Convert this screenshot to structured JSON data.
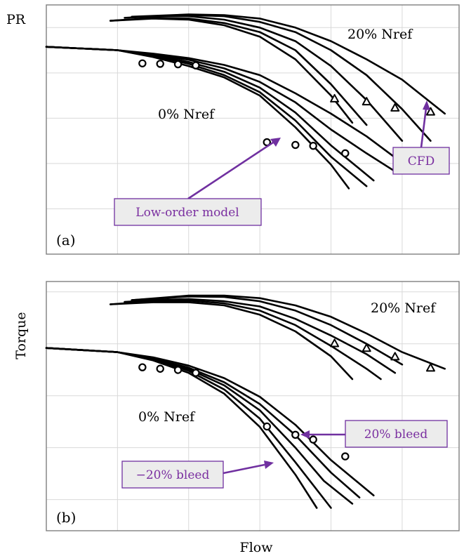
{
  "figure": {
    "xlabel": "Flow",
    "colors": {
      "curve": "#000000",
      "grid": "#d9d9d9",
      "annotation": "#7030a0",
      "box_fill": "#ececec"
    }
  },
  "chart_data": [
    {
      "type": "line",
      "panel_label": "(a)",
      "ylabel": "PR",
      "grid": true,
      "speed_labels": [
        "20% Nref",
        "0% Nref"
      ],
      "annotations": [
        "Low-order model",
        "CFD"
      ],
      "series": [
        {
          "family": "0% Nref",
          "points": [
            [
              0.0,
              0.915
            ],
            [
              1.0,
              0.9
            ],
            [
              1.5,
              0.87
            ],
            [
              2.0,
              0.83
            ],
            [
              2.5,
              0.78
            ],
            [
              3.0,
              0.7
            ],
            [
              3.5,
              0.56
            ],
            [
              4.0,
              0.395
            ],
            [
              4.25,
              0.29
            ]
          ]
        },
        {
          "family": "0% Nref",
          "points": [
            [
              0.0,
              0.915
            ],
            [
              1.0,
              0.9
            ],
            [
              1.5,
              0.875
            ],
            [
              2.0,
              0.84
            ],
            [
              2.5,
              0.79
            ],
            [
              3.0,
              0.715
            ],
            [
              3.5,
              0.59
            ],
            [
              4.0,
              0.43
            ],
            [
              4.5,
              0.3
            ]
          ]
        },
        {
          "family": "0% Nref",
          "points": [
            [
              0.0,
              0.915
            ],
            [
              1.0,
              0.9
            ],
            [
              1.5,
              0.878
            ],
            [
              2.0,
              0.848
            ],
            [
              2.5,
              0.805
            ],
            [
              3.0,
              0.735
            ],
            [
              3.5,
              0.625
            ],
            [
              4.0,
              0.48
            ],
            [
              4.6,
              0.325
            ]
          ]
        },
        {
          "family": "0% Nref",
          "points": [
            [
              0.0,
              0.915
            ],
            [
              1.0,
              0.9
            ],
            [
              1.5,
              0.88
            ],
            [
              2.0,
              0.858
            ],
            [
              2.5,
              0.82
            ],
            [
              3.0,
              0.76
            ],
            [
              3.5,
              0.67
            ],
            [
              4.0,
              0.55
            ],
            [
              4.5,
              0.445
            ],
            [
              4.9,
              0.365
            ]
          ]
        },
        {
          "family": "0% Nref",
          "points": [
            [
              0.0,
              0.915
            ],
            [
              1.0,
              0.9
            ],
            [
              1.5,
              0.885
            ],
            [
              2.0,
              0.865
            ],
            [
              2.5,
              0.835
            ],
            [
              3.0,
              0.79
            ],
            [
              3.5,
              0.71
            ],
            [
              4.0,
              0.62
            ],
            [
              4.5,
              0.52
            ],
            [
              5.1,
              0.38
            ]
          ]
        },
        {
          "family": "20% Nref",
          "points": [
            [
              0.9,
              1.03
            ],
            [
              1.5,
              1.04
            ],
            [
              2.0,
              1.035
            ],
            [
              2.5,
              1.01
            ],
            [
              3.0,
              0.96
            ],
            [
              3.5,
              0.86
            ],
            [
              4.0,
              0.7
            ],
            [
              4.3,
              0.58
            ]
          ]
        },
        {
          "family": "20% Nref",
          "points": [
            [
              0.9,
              1.03
            ],
            [
              1.5,
              1.042
            ],
            [
              2.0,
              1.04
            ],
            [
              2.5,
              1.02
            ],
            [
              3.0,
              0.98
            ],
            [
              3.5,
              0.9
            ],
            [
              4.0,
              0.75
            ],
            [
              4.5,
              0.57
            ]
          ]
        },
        {
          "family": "20% Nref",
          "points": [
            [
              1.1,
              1.043
            ],
            [
              1.5,
              1.05
            ],
            [
              2.0,
              1.05
            ],
            [
              2.5,
              1.035
            ],
            [
              3.0,
              1.0
            ],
            [
              3.5,
              0.94
            ],
            [
              4.0,
              0.83
            ],
            [
              4.5,
              0.68
            ],
            [
              5.0,
              0.5
            ]
          ]
        },
        {
          "family": "20% Nref",
          "points": [
            [
              1.2,
              1.045
            ],
            [
              2.0,
              1.055
            ],
            [
              2.5,
              1.05
            ],
            [
              3.0,
              1.025
            ],
            [
              3.5,
              0.98
            ],
            [
              4.0,
              0.9
            ],
            [
              4.5,
              0.79
            ],
            [
              5.0,
              0.64
            ],
            [
              5.4,
              0.5
            ]
          ]
        },
        {
          "family": "20% Nref",
          "points": [
            [
              1.2,
              1.048
            ],
            [
              2.0,
              1.058
            ],
            [
              2.5,
              1.055
            ],
            [
              3.0,
              1.04
            ],
            [
              3.5,
              1.0
            ],
            [
              4.0,
              0.94
            ],
            [
              4.5,
              0.86
            ],
            [
              5.0,
              0.77
            ],
            [
              5.6,
              0.62
            ]
          ]
        }
      ],
      "markers": {
        "low_order_model": [
          [
            1.35,
            0.842
          ],
          [
            1.6,
            0.84
          ],
          [
            1.85,
            0.838
          ],
          [
            2.1,
            0.833
          ],
          [
            3.1,
            0.494
          ],
          [
            3.5,
            0.482
          ],
          [
            3.75,
            0.478
          ],
          [
            4.2,
            0.445
          ]
        ],
        "cfd": [
          [
            4.05,
            0.685
          ],
          [
            4.5,
            0.672
          ],
          [
            4.9,
            0.645
          ],
          [
            5.4,
            0.627
          ]
        ]
      }
    },
    {
      "type": "line",
      "panel_label": "(b)",
      "ylabel": "Torque",
      "grid": true,
      "speed_labels": [
        "20% Nref",
        "0% Nref"
      ],
      "annotations": [
        "20% bleed",
        "−20% bleed"
      ],
      "series": [
        {
          "family": "0% Nref",
          "points": [
            [
              0.0,
              0.98
            ],
            [
              1.0,
              0.96
            ],
            [
              1.5,
              0.92
            ],
            [
              2.0,
              0.86
            ],
            [
              2.5,
              0.76
            ],
            [
              3.0,
              0.6
            ],
            [
              3.5,
              0.37
            ],
            [
              3.8,
              0.21
            ]
          ]
        },
        {
          "family": "0% Nref",
          "points": [
            [
              0.0,
              0.98
            ],
            [
              1.0,
              0.96
            ],
            [
              1.5,
              0.925
            ],
            [
              2.0,
              0.87
            ],
            [
              2.5,
              0.78
            ],
            [
              3.0,
              0.64
            ],
            [
              3.5,
              0.43
            ],
            [
              4.0,
              0.21
            ]
          ]
        },
        {
          "family": "0% Nref",
          "points": [
            [
              0.0,
              0.98
            ],
            [
              1.0,
              0.96
            ],
            [
              1.5,
              0.928
            ],
            [
              2.0,
              0.878
            ],
            [
              2.5,
              0.8
            ],
            [
              3.0,
              0.68
            ],
            [
              3.5,
              0.5
            ],
            [
              3.9,
              0.34
            ],
            [
              4.3,
              0.23
            ]
          ]
        },
        {
          "family": "0% Nref",
          "points": [
            [
              0.0,
              0.98
            ],
            [
              1.0,
              0.96
            ],
            [
              1.5,
              0.93
            ],
            [
              2.0,
              0.885
            ],
            [
              2.5,
              0.815
            ],
            [
              3.0,
              0.71
            ],
            [
              3.5,
              0.56
            ],
            [
              4.0,
              0.38
            ],
            [
              4.4,
              0.26
            ]
          ]
        },
        {
          "family": "0% Nref",
          "points": [
            [
              0.0,
              0.98
            ],
            [
              1.0,
              0.96
            ],
            [
              1.5,
              0.935
            ],
            [
              2.0,
              0.895
            ],
            [
              2.5,
              0.835
            ],
            [
              3.0,
              0.745
            ],
            [
              3.5,
              0.61
            ],
            [
              4.0,
              0.44
            ],
            [
              4.6,
              0.27
            ]
          ]
        },
        {
          "family": "20% Nref",
          "points": [
            [
              0.9,
              1.19
            ],
            [
              1.5,
              1.2
            ],
            [
              2.0,
              1.2
            ],
            [
              2.5,
              1.185
            ],
            [
              3.0,
              1.14
            ],
            [
              3.5,
              1.06
            ],
            [
              4.0,
              0.94
            ],
            [
              4.3,
              0.83
            ]
          ]
        },
        {
          "family": "20% Nref",
          "points": [
            [
              0.9,
              1.19
            ],
            [
              1.5,
              1.205
            ],
            [
              2.0,
              1.208
            ],
            [
              2.5,
              1.195
            ],
            [
              3.0,
              1.16
            ],
            [
              3.5,
              1.09
            ],
            [
              4.0,
              0.99
            ],
            [
              4.5,
              0.88
            ],
            [
              4.7,
              0.83
            ]
          ]
        },
        {
          "family": "20% Nref",
          "points": [
            [
              1.1,
              1.202
            ],
            [
              1.6,
              1.212
            ],
            [
              2.0,
              1.215
            ],
            [
              2.5,
              1.205
            ],
            [
              3.0,
              1.18
            ],
            [
              3.5,
              1.12
            ],
            [
              4.0,
              1.04
            ],
            [
              4.5,
              0.95
            ],
            [
              4.9,
              0.86
            ]
          ]
        },
        {
          "family": "20% Nref",
          "points": [
            [
              1.2,
              1.21
            ],
            [
              2.0,
              1.228
            ],
            [
              2.5,
              1.226
            ],
            [
              3.0,
              1.205
            ],
            [
              3.5,
              1.16
            ],
            [
              4.0,
              1.09
            ],
            [
              4.5,
              1.0
            ],
            [
              5.0,
              0.9
            ]
          ]
        },
        {
          "family": "20% Nref",
          "points": [
            [
              1.2,
              1.21
            ],
            [
              2.0,
              1.232
            ],
            [
              2.5,
              1.232
            ],
            [
              3.0,
              1.22
            ],
            [
              3.5,
              1.185
            ],
            [
              4.0,
              1.13
            ],
            [
              4.5,
              1.05
            ],
            [
              5.0,
              0.96
            ],
            [
              5.6,
              0.88
            ]
          ]
        }
      ],
      "markers": {
        "low_order_model": [
          [
            1.35,
            0.887
          ],
          [
            1.6,
            0.88
          ],
          [
            1.85,
            0.874
          ],
          [
            2.1,
            0.86
          ],
          [
            3.1,
            0.602
          ],
          [
            3.5,
            0.562
          ],
          [
            3.75,
            0.539
          ],
          [
            4.2,
            0.458
          ]
        ],
        "cfd": [
          [
            4.05,
            1.001
          ],
          [
            4.5,
            0.978
          ],
          [
            4.9,
            0.937
          ],
          [
            5.4,
            0.883
          ]
        ]
      }
    }
  ]
}
